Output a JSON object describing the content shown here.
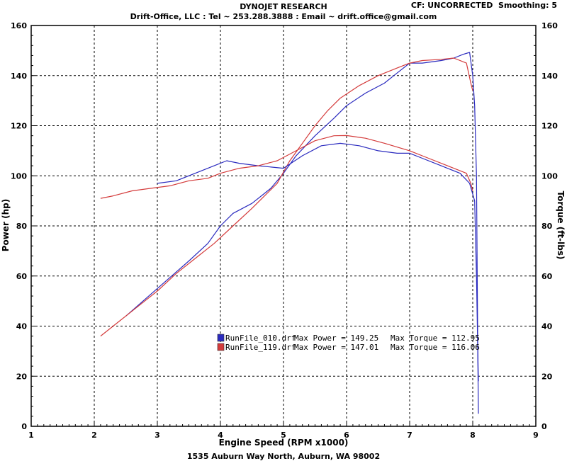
{
  "header": {
    "title": "DYNOJET RESEARCH",
    "subtitle": "Drift-Office, LLC : Tel ~ 253.288.3888 : Email ~ drift.office@gmail.com",
    "cf_label": "CF: UNCORRECTED",
    "smoothing_label": "Smoothing: 5"
  },
  "footer": {
    "address": "1535 Auburn Way North, Auburn, WA 98002"
  },
  "chart_data": {
    "type": "line",
    "xlabel": "Engine Speed (RPM x1000)",
    "ylabel": "Power (hp)",
    "y2label": "Torque (ft-lbs)",
    "xlim": [
      1,
      9
    ],
    "ylim": [
      0,
      160
    ],
    "y2lim": [
      0,
      160
    ],
    "x_ticks": [
      1,
      2,
      3,
      4,
      5,
      6,
      7,
      8,
      9
    ],
    "y_ticks": [
      0,
      20,
      40,
      60,
      80,
      100,
      120,
      140,
      160
    ],
    "grid": true,
    "legend": [
      {
        "run": "RunFile_010.drf",
        "max_power_label": "Max Power = 149.25",
        "max_torque_label": "Max Torque = 112.95",
        "color": "#2b2bbf"
      },
      {
        "run": "RunFile_119.drf",
        "max_power_label": "Max Power = 147.01",
        "max_torque_label": "Max Torque = 116.06",
        "color": "#d43b3b"
      }
    ],
    "series": [
      {
        "run": "RunFile_010.drf",
        "kind": "power",
        "color": "#2b2bbf",
        "points": [
          [
            2.5,
            44
          ],
          [
            3.0,
            55
          ],
          [
            3.5,
            66
          ],
          [
            3.8,
            73
          ],
          [
            4.0,
            80
          ],
          [
            4.2,
            85
          ],
          [
            4.5,
            89
          ],
          [
            4.8,
            95
          ],
          [
            5.0,
            101
          ],
          [
            5.2,
            108
          ],
          [
            5.5,
            116
          ],
          [
            5.8,
            123
          ],
          [
            6.0,
            128
          ],
          [
            6.3,
            133
          ],
          [
            6.6,
            137
          ],
          [
            6.8,
            141
          ],
          [
            7.0,
            145
          ],
          [
            7.2,
            145
          ],
          [
            7.5,
            146
          ],
          [
            7.7,
            147
          ],
          [
            7.85,
            148.5
          ],
          [
            7.95,
            149.25
          ],
          [
            8.0,
            140
          ],
          [
            8.03,
            128
          ],
          [
            8.06,
            100
          ],
          [
            8.08,
            30
          ],
          [
            8.09,
            5
          ]
        ]
      },
      {
        "run": "RunFile_119.drf",
        "kind": "power",
        "color": "#d43b3b",
        "points": [
          [
            2.1,
            36
          ],
          [
            2.4,
            42
          ],
          [
            2.7,
            48
          ],
          [
            3.0,
            54
          ],
          [
            3.3,
            61
          ],
          [
            3.6,
            67
          ],
          [
            3.9,
            73
          ],
          [
            4.2,
            80
          ],
          [
            4.5,
            87
          ],
          [
            4.7,
            92
          ],
          [
            4.9,
            97
          ],
          [
            5.1,
            106
          ],
          [
            5.3,
            113
          ],
          [
            5.5,
            120
          ],
          [
            5.7,
            126
          ],
          [
            5.9,
            131
          ],
          [
            6.2,
            136
          ],
          [
            6.5,
            140
          ],
          [
            6.8,
            143
          ],
          [
            7.0,
            145
          ],
          [
            7.2,
            146
          ],
          [
            7.5,
            146.5
          ],
          [
            7.7,
            147.01
          ],
          [
            7.9,
            145
          ],
          [
            7.97,
            137
          ],
          [
            8.0,
            134
          ]
        ]
      },
      {
        "run": "RunFile_010.drf",
        "kind": "torque",
        "color": "#2b2bbf",
        "points": [
          [
            3.0,
            97
          ],
          [
            3.3,
            98
          ],
          [
            3.6,
            101
          ],
          [
            3.9,
            104
          ],
          [
            4.1,
            106
          ],
          [
            4.3,
            105
          ],
          [
            4.6,
            104
          ],
          [
            5.0,
            103
          ],
          [
            5.3,
            108
          ],
          [
            5.6,
            112
          ],
          [
            5.9,
            112.95
          ],
          [
            6.2,
            112
          ],
          [
            6.5,
            110
          ],
          [
            6.8,
            109
          ],
          [
            7.0,
            109
          ],
          [
            7.2,
            107
          ],
          [
            7.5,
            104
          ],
          [
            7.8,
            101
          ],
          [
            7.95,
            97
          ],
          [
            8.03,
            90
          ],
          [
            8.06,
            60
          ],
          [
            8.08,
            30
          ],
          [
            8.09,
            18
          ]
        ]
      },
      {
        "run": "RunFile_119.drf",
        "kind": "torque",
        "color": "#d43b3b",
        "points": [
          [
            2.1,
            91
          ],
          [
            2.3,
            92
          ],
          [
            2.6,
            94
          ],
          [
            2.9,
            95
          ],
          [
            3.2,
            96
          ],
          [
            3.5,
            98
          ],
          [
            3.8,
            99
          ],
          [
            4.0,
            101
          ],
          [
            4.3,
            103
          ],
          [
            4.6,
            104
          ],
          [
            4.9,
            106
          ],
          [
            5.2,
            110
          ],
          [
            5.5,
            114
          ],
          [
            5.8,
            116
          ],
          [
            6.0,
            116.06
          ],
          [
            6.3,
            115
          ],
          [
            6.6,
            113
          ],
          [
            7.0,
            110
          ],
          [
            7.3,
            107
          ],
          [
            7.6,
            104
          ],
          [
            7.9,
            101
          ],
          [
            7.97,
            97
          ],
          [
            8.0,
            94
          ]
        ]
      }
    ]
  }
}
